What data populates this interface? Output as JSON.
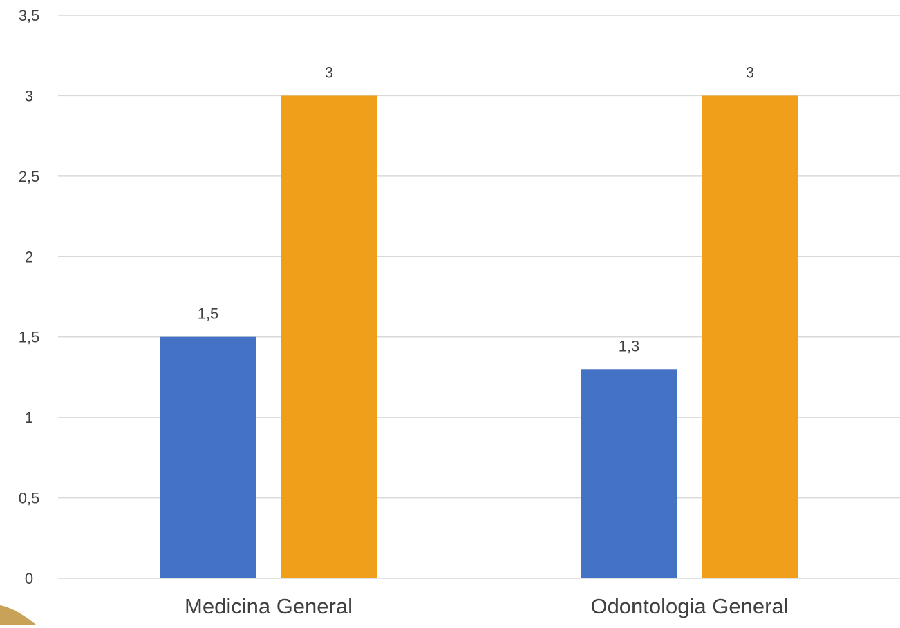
{
  "chart_data": {
    "type": "bar",
    "categories": [
      "Medicina General",
      "Odontologia General"
    ],
    "series": [
      {
        "values": [
          1.5,
          1.3
        ],
        "color": "#4472c4"
      },
      {
        "values": [
          3,
          3
        ],
        "color": "#f09f1b"
      }
    ],
    "data_labels": [
      [
        "1,5",
        "1,3"
      ],
      [
        "3",
        "3"
      ]
    ],
    "y_ticks": [
      0,
      0.5,
      1,
      1.5,
      2,
      2.5,
      3,
      3.5
    ],
    "y_tick_labels": [
      "0",
      "0,5",
      "1",
      "1,5",
      "2",
      "2,5",
      "3",
      "3,5"
    ],
    "ylim": [
      0,
      3.5
    ],
    "grid": true,
    "legend": "none",
    "title": "",
    "xlabel": "",
    "ylabel": ""
  },
  "decoration": {
    "corner_accent_color": "#c9a25a"
  }
}
